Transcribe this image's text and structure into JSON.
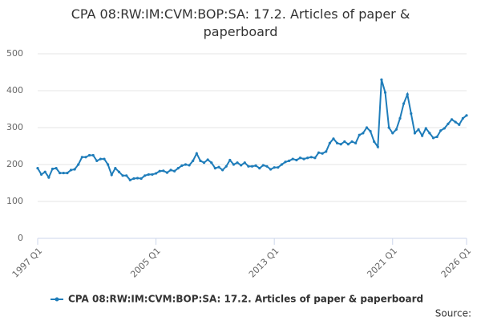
{
  "chart_data": {
    "type": "line",
    "title": "CPA 08:RW:IM:CVM:BOP:SA: 17.2. Articles of paper & paperboard",
    "source": "Source:",
    "categories": [
      "1997 Q1",
      null,
      null,
      null,
      null,
      null,
      null,
      null,
      null,
      null,
      null,
      null,
      null,
      null,
      null,
      null,
      null,
      null,
      null,
      null,
      null,
      null,
      null,
      null,
      null,
      null,
      null,
      null,
      null,
      null,
      null,
      null,
      "2005 Q1",
      null,
      null,
      null,
      null,
      null,
      null,
      null,
      null,
      null,
      null,
      null,
      null,
      null,
      null,
      null,
      null,
      null,
      null,
      null,
      null,
      null,
      null,
      null,
      null,
      null,
      null,
      null,
      null,
      null,
      null,
      null,
      "2013 Q1",
      null,
      null,
      null,
      null,
      null,
      null,
      null,
      null,
      null,
      null,
      null,
      null,
      null,
      null,
      null,
      null,
      null,
      null,
      null,
      null,
      null,
      null,
      null,
      null,
      null,
      null,
      null,
      null,
      null,
      null,
      null,
      "2021 Q1",
      null,
      null,
      null,
      null,
      null,
      null,
      null,
      null,
      null,
      null,
      null,
      null,
      null,
      null,
      null,
      null,
      null,
      null,
      null,
      "2026 Q1"
    ],
    "series": [
      {
        "name": "CPA 08:RW:IM:CVM:BOP:SA: 17.2. Articles of paper & paperboard",
        "color": "#1f7dba",
        "values": [
          190,
          173,
          180,
          165,
          188,
          190,
          177,
          177,
          177,
          185,
          187,
          200,
          220,
          220,
          225,
          225,
          210,
          215,
          215,
          200,
          172,
          190,
          180,
          170,
          170,
          158,
          162,
          163,
          162,
          170,
          173,
          173,
          176,
          182,
          183,
          178,
          185,
          182,
          190,
          197,
          200,
          198,
          210,
          230,
          210,
          205,
          213,
          205,
          190,
          193,
          185,
          195,
          212,
          200,
          205,
          198,
          205,
          195,
          195,
          197,
          190,
          198,
          195,
          187,
          192,
          192,
          200,
          207,
          210,
          215,
          212,
          218,
          215,
          218,
          220,
          218,
          232,
          230,
          235,
          258,
          270,
          258,
          255,
          262,
          255,
          262,
          258,
          280,
          285,
          300,
          290,
          262,
          248,
          430,
          395,
          300,
          285,
          295,
          325,
          365,
          390,
          338,
          285,
          295,
          278,
          298,
          285,
          272,
          275,
          292,
          298,
          310,
          322,
          315,
          308,
          325,
          333
        ]
      }
    ],
    "ylim": [
      0,
      500
    ],
    "yticks": [
      0,
      100,
      200,
      300,
      400,
      500
    ],
    "grid": true,
    "legend": "bottom"
  }
}
